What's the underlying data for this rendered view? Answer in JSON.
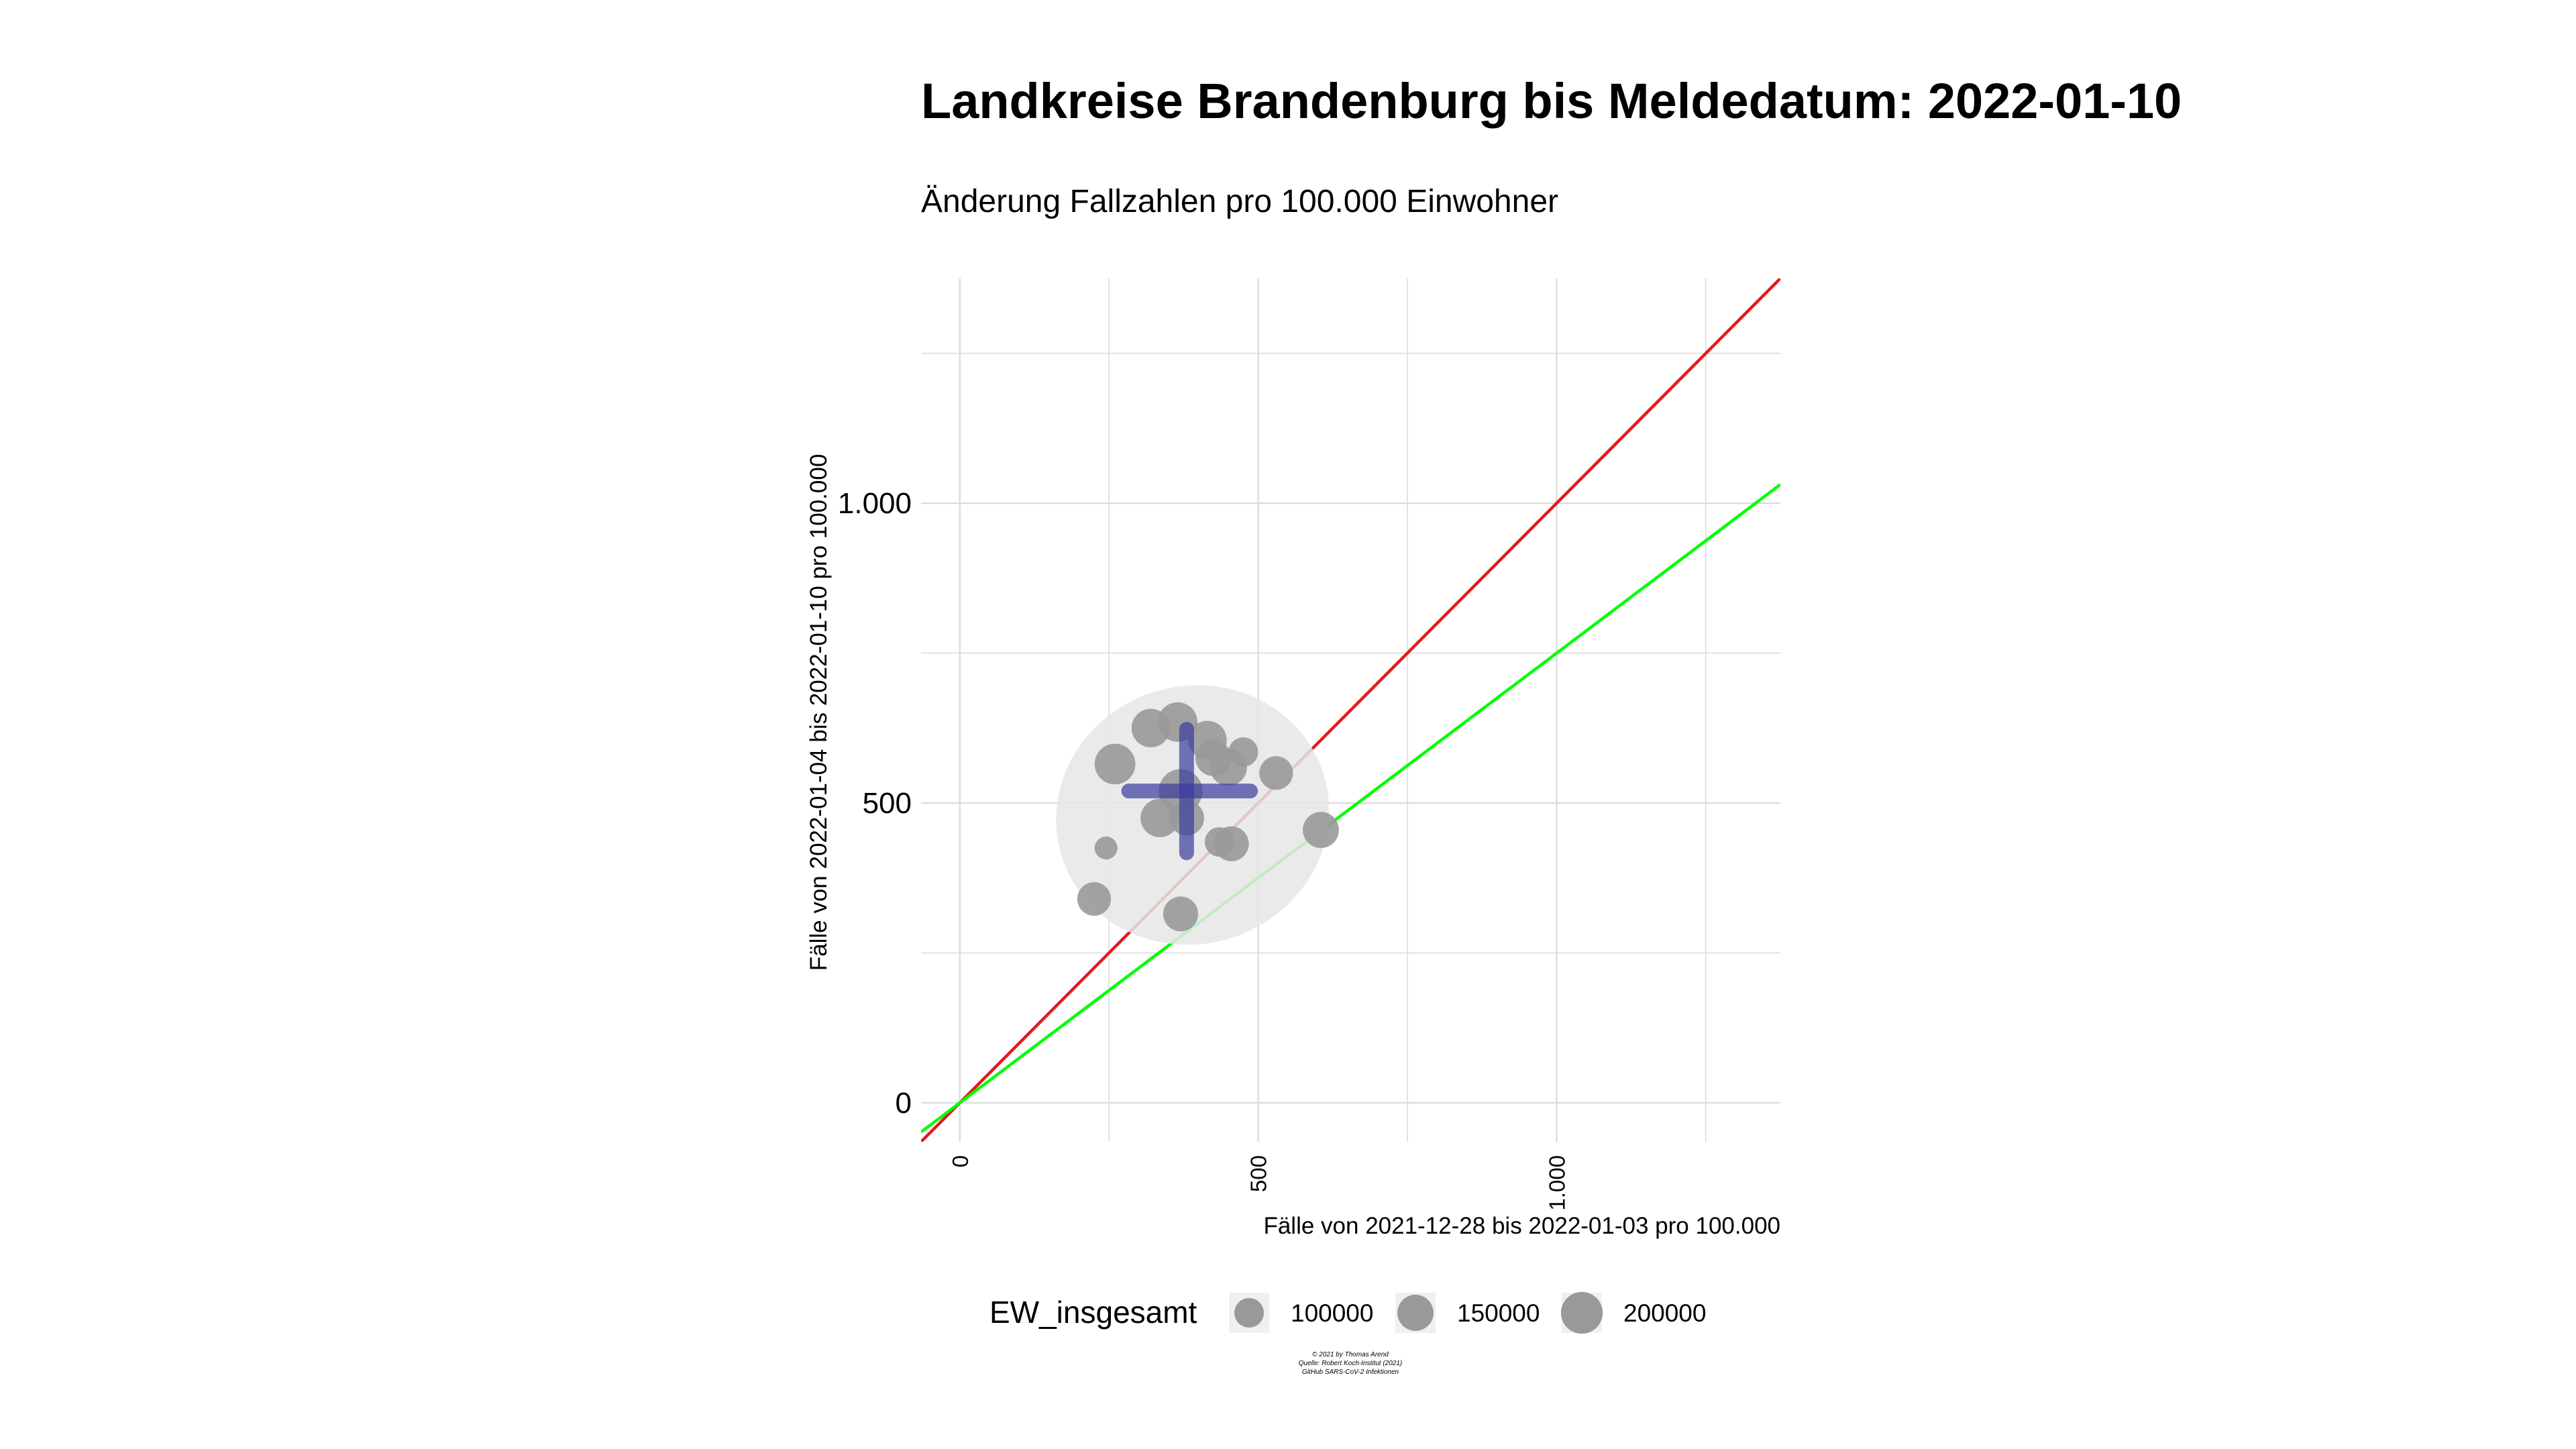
{
  "chart_data": {
    "type": "scatter",
    "title": "Landkreise Brandenburg bis Meldedatum: 2022-01-10",
    "subtitle": "Änderung Fallzahlen pro 100.000 Einwohner",
    "xlabel": "Fälle von 2021-12-28 bis 2022-01-03 pro 100.000",
    "ylabel": "Fälle von 2022-01-04 bis 2022-01-10 pro 100.000",
    "xlim": [
      -65,
      1375
    ],
    "ylim": [
      -65,
      1375
    ],
    "x_ticks": [
      0,
      500,
      1000
    ],
    "x_tick_labels": [
      "0",
      "500",
      "1.000"
    ],
    "y_ticks": [
      0,
      500,
      1000
    ],
    "y_tick_labels": [
      "0",
      "500",
      "1.000"
    ],
    "grid": true,
    "reference_lines": [
      {
        "slope": 1.0,
        "intercept": 0,
        "color": "#e31a1c"
      },
      {
        "slope": 0.75,
        "intercept": 0,
        "color": "#00ff00"
      }
    ],
    "ellipse": {
      "center": [
        390,
        480
      ],
      "rx": 230,
      "ry": 215,
      "color": "#e6e6e6"
    },
    "mean_cross": {
      "x": 380,
      "y": 520,
      "x_range": [
        283,
        487
      ],
      "y_range": [
        417,
        623
      ],
      "color": "#3a3aa0"
    },
    "points": [
      {
        "x": 320,
        "y": 625,
        "pop": 170000
      },
      {
        "x": 365,
        "y": 635,
        "pop": 180000
      },
      {
        "x": 415,
        "y": 605,
        "pop": 170000
      },
      {
        "x": 425,
        "y": 575,
        "pop": 150000
      },
      {
        "x": 450,
        "y": 560,
        "pop": 160000
      },
      {
        "x": 475,
        "y": 585,
        "pop": 100000
      },
      {
        "x": 260,
        "y": 565,
        "pop": 190000
      },
      {
        "x": 370,
        "y": 520,
        "pop": 220000
      },
      {
        "x": 335,
        "y": 475,
        "pop": 170000
      },
      {
        "x": 380,
        "y": 475,
        "pop": 140000
      },
      {
        "x": 530,
        "y": 550,
        "pop": 130000
      },
      {
        "x": 605,
        "y": 455,
        "pop": 150000
      },
      {
        "x": 455,
        "y": 432,
        "pop": 140000
      },
      {
        "x": 435,
        "y": 435,
        "pop": 100000
      },
      {
        "x": 245,
        "y": 425,
        "pop": 60000
      },
      {
        "x": 225,
        "y": 340,
        "pop": 130000
      },
      {
        "x": 370,
        "y": 315,
        "pop": 140000
      }
    ],
    "legend": {
      "title": "EW_insgesamt",
      "placement": "bottom",
      "entries": [
        {
          "label": "100000",
          "pop": 100000
        },
        {
          "label": "150000",
          "pop": 150000
        },
        {
          "label": "200000",
          "pop": 200000
        }
      ]
    },
    "caption": [
      "© 2021 by Thomas Arend",
      "Quelle: Robert Koch-Institut (2021)",
      "GitHub SARS-CoV-2 Infektionen"
    ],
    "colors": {
      "point": "#999999",
      "grid": "#dcdcdc",
      "background": "#ffffff"
    }
  }
}
